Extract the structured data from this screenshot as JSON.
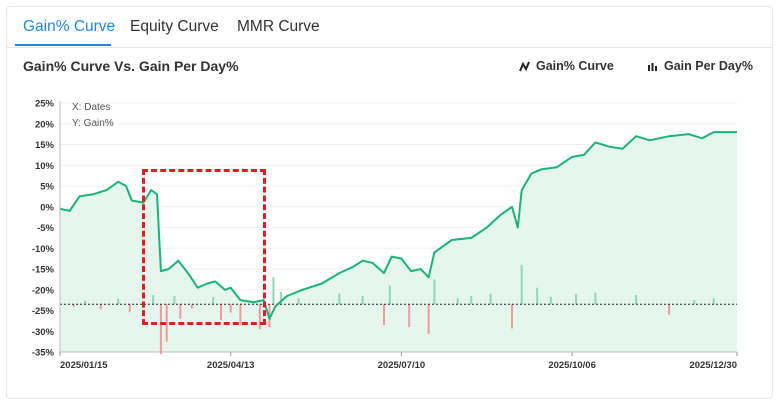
{
  "tabs": [
    {
      "label": "Gain% Curve",
      "active": true
    },
    {
      "label": "Equity Curve",
      "active": false
    },
    {
      "label": "MMR Curve",
      "active": false
    }
  ],
  "chart_title": "Gain% Curve Vs. Gain Per Day%",
  "legend": [
    {
      "label": "Gain% Curve",
      "icon": "line-chart-icon"
    },
    {
      "label": "Gain Per Day%",
      "icon": "bar-chart-icon"
    }
  ],
  "annotation": {
    "x_note": "X: Dates",
    "y_note": "Y: Gain%"
  },
  "colors": {
    "line": "#19b47a",
    "area": "#e4f6ee",
    "up_bar": "#8ed9b5",
    "down_bar": "#f19a9a",
    "baseline": "#222222",
    "highlight_box": "#e11d1d",
    "accent": "#1e88e5"
  },
  "chart_data": {
    "type": "line",
    "title": "Gain% Curve Vs. Gain Per Day%",
    "xlabel": "Dates",
    "ylabel": "Gain%",
    "x_ticks": [
      "2025/01/15",
      "2025/04/13",
      "2025/07/10",
      "2025/10/06",
      "2025/12/30"
    ],
    "y_ticks": [
      "25%",
      "20%",
      "15%",
      "10%",
      "5%",
      "0%",
      "-5%",
      "-10%",
      "-15%",
      "-20%",
      "-25%",
      "-30%",
      "-35%"
    ],
    "ylim": [
      -35,
      25
    ],
    "bar_baseline": -23.5,
    "grid": true,
    "legend_position": "top-right",
    "series": [
      {
        "name": "Gain% Curve",
        "points": [
          [
            "2025/01/15",
            -0.5
          ],
          [
            "2025/01/20",
            -1.0
          ],
          [
            "2025/01/25",
            2.5
          ],
          [
            "2025/02/01",
            3.0
          ],
          [
            "2025/02/08",
            4.0
          ],
          [
            "2025/02/14",
            6.0
          ],
          [
            "2025/02/18",
            5.0
          ],
          [
            "2025/02/21",
            1.5
          ],
          [
            "2025/02/27",
            1.0
          ],
          [
            "2025/03/03",
            4.0
          ],
          [
            "2025/03/06",
            3.0
          ],
          [
            "2025/03/08",
            -15.5
          ],
          [
            "2025/03/12",
            -15.0
          ],
          [
            "2025/03/17",
            -13.0
          ],
          [
            "2025/03/22",
            -16.0
          ],
          [
            "2025/03/27",
            -19.5
          ],
          [
            "2025/04/01",
            -18.5
          ],
          [
            "2025/04/05",
            -18.0
          ],
          [
            "2025/04/10",
            -20.0
          ],
          [
            "2025/04/13",
            -19.5
          ],
          [
            "2025/04/18",
            -22.5
          ],
          [
            "2025/04/25",
            -23.0
          ],
          [
            "2025/04/30",
            -22.5
          ],
          [
            "2025/05/03",
            -27.0
          ],
          [
            "2025/05/06",
            -24.0
          ],
          [
            "2025/05/12",
            -21.5
          ],
          [
            "2025/05/20",
            -20.0
          ],
          [
            "2025/05/30",
            -18.5
          ],
          [
            "2025/06/08",
            -16.0
          ],
          [
            "2025/06/15",
            -14.5
          ],
          [
            "2025/06/20",
            -13.0
          ],
          [
            "2025/06/25",
            -13.5
          ],
          [
            "2025/07/01",
            -16.0
          ],
          [
            "2025/07/05",
            -12.0
          ],
          [
            "2025/07/10",
            -12.5
          ],
          [
            "2025/07/15",
            -15.5
          ],
          [
            "2025/07/20",
            -15.0
          ],
          [
            "2025/07/24",
            -17.0
          ],
          [
            "2025/07/27",
            -11.0
          ],
          [
            "2025/08/05",
            -8.0
          ],
          [
            "2025/08/15",
            -7.5
          ],
          [
            "2025/08/23",
            -5.0
          ],
          [
            "2025/08/30",
            -2.0
          ],
          [
            "2025/09/05",
            0.0
          ],
          [
            "2025/09/08",
            -5.0
          ],
          [
            "2025/09/10",
            4.0
          ],
          [
            "2025/09/15",
            8.0
          ],
          [
            "2025/09/20",
            9.0
          ],
          [
            "2025/09/28",
            9.5
          ],
          [
            "2025/10/06",
            12.0
          ],
          [
            "2025/10/12",
            12.5
          ],
          [
            "2025/10/18",
            15.5
          ],
          [
            "2025/10/25",
            14.5
          ],
          [
            "2025/11/01",
            14.0
          ],
          [
            "2025/11/08",
            17.0
          ],
          [
            "2025/11/15",
            16.0
          ],
          [
            "2025/11/25",
            17.0
          ],
          [
            "2025/12/05",
            17.5
          ],
          [
            "2025/12/12",
            16.5
          ],
          [
            "2025/12/18",
            18.0
          ],
          [
            "2025/12/30",
            18.0
          ]
        ]
      },
      {
        "name": "Gain Per Day%",
        "type": "bar",
        "points": [
          [
            "2025/01/22",
            -0.6
          ],
          [
            "2025/01/28",
            0.9
          ],
          [
            "2025/02/05",
            -1.2
          ],
          [
            "2025/02/14",
            1.4
          ],
          [
            "2025/02/20",
            -1.9
          ],
          [
            "2025/02/27",
            -1.0
          ],
          [
            "2025/03/04",
            2.2
          ],
          [
            "2025/03/08",
            -12.0
          ],
          [
            "2025/03/11",
            -9.0
          ],
          [
            "2025/03/15",
            2.0
          ],
          [
            "2025/03/18",
            -3.5
          ],
          [
            "2025/03/24",
            -1.0
          ],
          [
            "2025/04/04",
            1.8
          ],
          [
            "2025/04/08",
            -3.8
          ],
          [
            "2025/04/13",
            -2.0
          ],
          [
            "2025/04/18",
            -5.0
          ],
          [
            "2025/04/28",
            -6.0
          ],
          [
            "2025/05/03",
            -5.5
          ],
          [
            "2025/05/05",
            6.5
          ],
          [
            "2025/05/09",
            3.0
          ],
          [
            "2025/05/18",
            1.5
          ],
          [
            "2025/06/08",
            2.6
          ],
          [
            "2025/06/20",
            2.0
          ],
          [
            "2025/07/01",
            -5.0
          ],
          [
            "2025/07/04",
            4.5
          ],
          [
            "2025/07/14",
            -5.5
          ],
          [
            "2025/07/24",
            -7.2
          ],
          [
            "2025/07/27",
            6.0
          ],
          [
            "2025/08/08",
            1.5
          ],
          [
            "2025/08/15",
            2.0
          ],
          [
            "2025/08/25",
            2.5
          ],
          [
            "2025/09/05",
            -5.8
          ],
          [
            "2025/09/10",
            9.5
          ],
          [
            "2025/09/18",
            4.0
          ],
          [
            "2025/09/25",
            1.8
          ],
          [
            "2025/10/08",
            2.5
          ],
          [
            "2025/10/18",
            2.8
          ],
          [
            "2025/11/08",
            2.2
          ],
          [
            "2025/11/25",
            -2.5
          ],
          [
            "2025/12/08",
            1.0
          ],
          [
            "2025/12/18",
            1.5
          ]
        ]
      }
    ]
  }
}
